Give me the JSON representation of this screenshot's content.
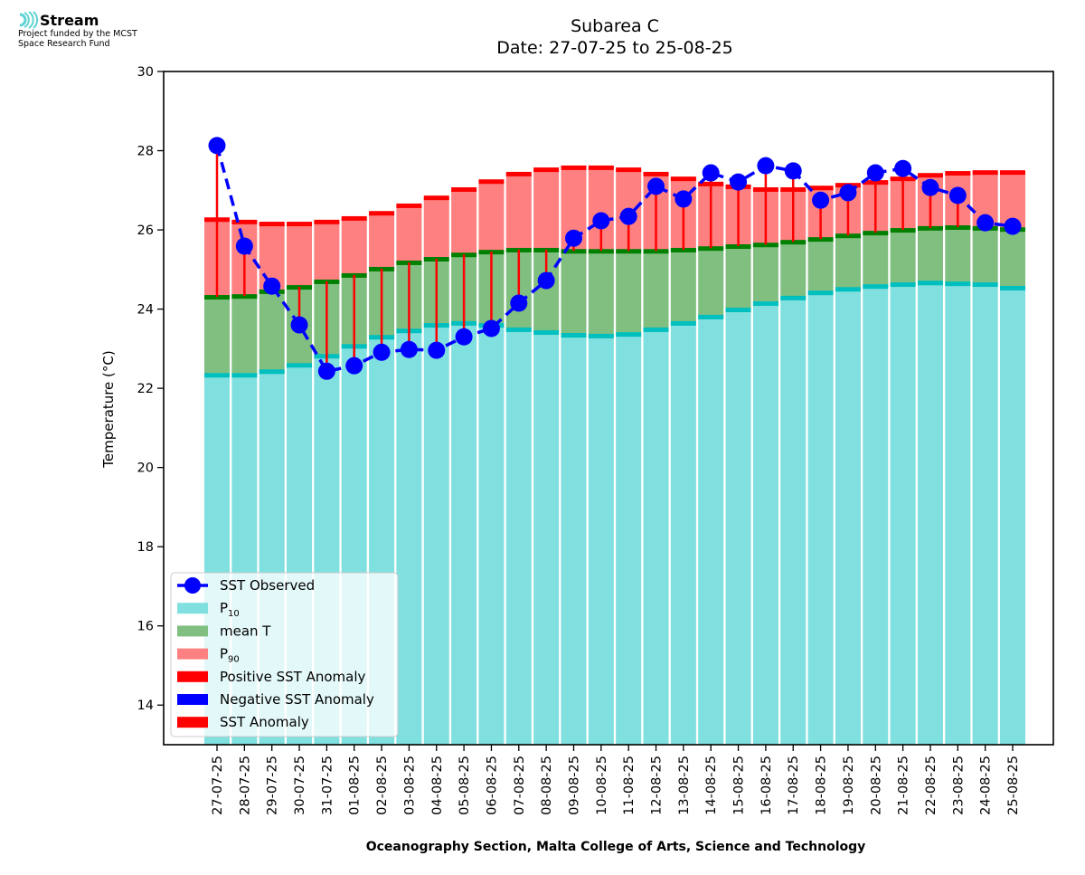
{
  "header": {
    "logo_name": "Stream",
    "logo_line1": "Project funded by the MCST",
    "logo_line2": "Space Research Fund",
    "logo_icon": "stream-waves-icon"
  },
  "colors": {
    "p10": "#80dfdf",
    "p10_edge": "#00bfbf",
    "mean": "#80bf80",
    "mean_edge": "#008000",
    "p90": "#ff8080",
    "p90_edge": "#ff0000",
    "sst": "#0000ff",
    "anomaly": "#ff0000"
  },
  "chart_data": {
    "type": "bar",
    "title": "Subarea C",
    "subtitle": "Date: 27-07-25 to 25-08-25",
    "xlabel": "Oceanography Section, Malta College of Arts, Science and Technology",
    "ylabel": "Temperature (°C)",
    "ylim": [
      13,
      30
    ],
    "yticks": [
      14,
      16,
      18,
      20,
      22,
      24,
      26,
      28,
      30
    ],
    "grid": false,
    "legend_position": "lower-left",
    "categories": [
      "27-07-25",
      "28-07-25",
      "29-07-25",
      "30-07-25",
      "31-07-25",
      "01-08-25",
      "02-08-25",
      "03-08-25",
      "04-08-25",
      "05-08-25",
      "06-08-25",
      "07-08-25",
      "08-08-25",
      "09-08-25",
      "10-08-25",
      "11-08-25",
      "12-08-25",
      "13-08-25",
      "14-08-25",
      "15-08-25",
      "16-08-25",
      "17-08-25",
      "18-08-25",
      "19-08-25",
      "20-08-25",
      "21-08-25",
      "22-08-25",
      "23-08-25",
      "24-08-25",
      "25-08-25"
    ],
    "series": [
      {
        "name": "P10",
        "kind": "bar",
        "values": [
          22.34,
          22.34,
          22.43,
          22.59,
          22.82,
          23.07,
          23.3,
          23.46,
          23.6,
          23.65,
          23.6,
          23.49,
          23.42,
          23.35,
          23.33,
          23.37,
          23.49,
          23.65,
          23.81,
          23.99,
          24.15,
          24.29,
          24.42,
          24.51,
          24.58,
          24.63,
          24.67,
          24.65,
          24.63,
          24.54
        ]
      },
      {
        "name": "mean T",
        "kind": "bar",
        "values": [
          24.31,
          24.33,
          24.45,
          24.56,
          24.7,
          24.86,
          25.02,
          25.18,
          25.27,
          25.38,
          25.45,
          25.5,
          25.5,
          25.47,
          25.47,
          25.47,
          25.47,
          25.5,
          25.54,
          25.59,
          25.63,
          25.7,
          25.77,
          25.86,
          25.93,
          26.0,
          26.05,
          26.07,
          26.05,
          26.02
        ]
      },
      {
        "name": "P90",
        "kind": "bar",
        "values": [
          26.27,
          26.21,
          26.16,
          26.16,
          26.21,
          26.3,
          26.43,
          26.62,
          26.82,
          27.03,
          27.23,
          27.42,
          27.53,
          27.58,
          27.58,
          27.53,
          27.42,
          27.3,
          27.17,
          27.1,
          27.03,
          27.03,
          27.07,
          27.14,
          27.21,
          27.3,
          27.39,
          27.44,
          27.46,
          27.46
        ]
      },
      {
        "name": "SST Observed",
        "kind": "line",
        "values": [
          28.13,
          25.59,
          24.58,
          23.6,
          22.43,
          22.57,
          22.91,
          22.98,
          22.96,
          23.3,
          23.51,
          24.15,
          24.72,
          25.79,
          26.23,
          26.34,
          27.1,
          26.78,
          27.44,
          27.21,
          27.62,
          27.49,
          26.75,
          26.94,
          27.44,
          27.55,
          27.07,
          26.87,
          26.18,
          26.09
        ]
      }
    ],
    "legend": [
      {
        "label": "SST Observed",
        "sub": "",
        "swatch": "line-marker",
        "color_key": "sst"
      },
      {
        "label": "P",
        "sub": "10",
        "swatch": "patch",
        "color_key": "p10"
      },
      {
        "label": "mean T",
        "sub": "",
        "swatch": "patch",
        "color_key": "mean"
      },
      {
        "label": "P",
        "sub": "90",
        "swatch": "patch",
        "color_key": "p90"
      },
      {
        "label": "Positive SST Anomaly",
        "sub": "",
        "swatch": "patch",
        "color_key": "anomaly"
      },
      {
        "label": "Negative SST Anomaly",
        "sub": "",
        "swatch": "patch",
        "color_key": "sst"
      },
      {
        "label": "SST Anomaly",
        "sub": "",
        "swatch": "patch",
        "color_key": "anomaly"
      }
    ]
  }
}
